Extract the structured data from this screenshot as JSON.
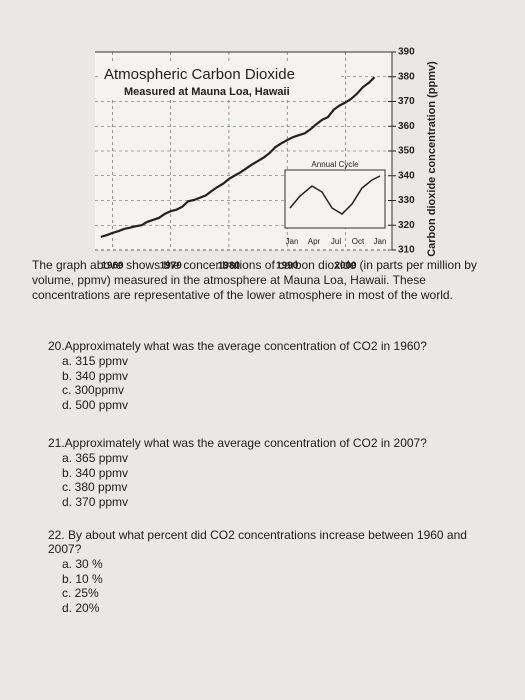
{
  "chart_data": {
    "type": "line",
    "title": "Atmospheric Carbon Dioxide",
    "subtitle": "Measured at Mauna Loa, Hawaii",
    "y_label": "Carbon dioxide concentration (ppmv)",
    "x": [
      1958,
      1959,
      1960,
      1961,
      1962,
      1963,
      1964,
      1965,
      1966,
      1967,
      1968,
      1969,
      1970,
      1971,
      1972,
      1973,
      1974,
      1975,
      1976,
      1977,
      1978,
      1979,
      1980,
      1981,
      1982,
      1983,
      1984,
      1985,
      1986,
      1987,
      1988,
      1989,
      1990,
      1991,
      1992,
      1993,
      1994,
      1995,
      1996,
      1997,
      1998,
      1999,
      2000,
      2001,
      2002,
      2003,
      2004,
      2005
    ],
    "series": [
      {
        "color": "#222222",
        "values": [
          315.3,
          316.0,
          316.9,
          317.6,
          318.5,
          319.0,
          319.6,
          320.0,
          321.4,
          322.2,
          323.0,
          324.6,
          325.7,
          326.3,
          327.5,
          329.7,
          330.2,
          331.1,
          332.0,
          333.8,
          335.4,
          336.8,
          338.7,
          340.1,
          341.4,
          343.0,
          344.6,
          346.0,
          347.4,
          349.2,
          351.6,
          353.1,
          354.4,
          355.6,
          356.4,
          357.1,
          358.8,
          360.8,
          362.6,
          363.7,
          366.7,
          368.4,
          369.6,
          371.1,
          373.2,
          375.8,
          377.5,
          379.8
        ]
      }
    ],
    "xlim": [
      1957,
      2008
    ],
    "ylim": [
      310,
      390
    ],
    "xticks": [
      1960,
      1970,
      1980,
      1990,
      2000
    ],
    "yticks": [
      310,
      320,
      330,
      340,
      350,
      360,
      370,
      380,
      390
    ],
    "grid": true,
    "inset": {
      "title": "Annual Cycle",
      "categories": [
        "Jan",
        "Apr",
        "Jul",
        "Oct",
        "Jan"
      ]
    }
  },
  "document": {
    "paragraph": [
      "The graph above shows the concentrations of carbon dioxide (in parts per million by",
      "volume, ppmv) measured in the atmosphere at Mauna Loa, Hawaii. These",
      "concentrations are representative of the lower atmosphere in most of the world."
    ],
    "questions": [
      {
        "question": [
          "20.Approximately what was the average concentration of CO2 in 1960?"
        ],
        "options": [
          "a.  315 ppmv",
          "b.  340 ppmv",
          "c.  300ppmv",
          "d.  500 ppmv"
        ]
      },
      {
        "question": [
          "21.Approximately what was the average concentration of CO2 in 2007?"
        ],
        "options": [
          "a.  365 ppmv",
          "b.  340 ppmv",
          "c.  380 ppmv",
          "d.  370 ppmv"
        ]
      },
      {
        "question": [
          "22. By about what percent did CO2 concentrations increase between 1960 and",
          "2007?"
        ],
        "options": [
          "a.  30 %",
          "b.  10 %",
          "c.  25%",
          "d.  20%"
        ]
      }
    ]
  }
}
